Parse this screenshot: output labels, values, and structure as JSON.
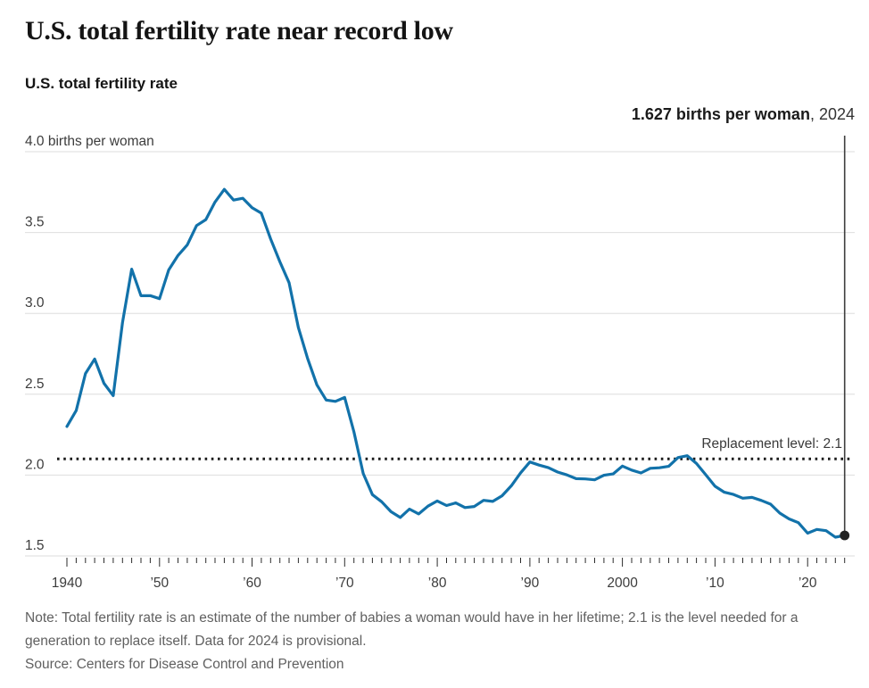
{
  "header": {
    "title": "U.S. total fertility rate near record low"
  },
  "chart": {
    "subtitle": "U.S. total fertility rate",
    "annotation": {
      "value_bold": "1.627 births per woman",
      "year_suffix": ", 2024"
    },
    "replacement_label": "Replacement level: 2.1"
  },
  "chart_data": {
    "type": "line",
    "title": "U.S. total fertility rate",
    "ylabel": "births per woman",
    "ylim": [
      1.5,
      4.0
    ],
    "xlim": [
      1940,
      2024
    ],
    "grid": "horizontal",
    "x_start_year": 1940,
    "x_end_year": 2024,
    "yticks": [
      {
        "value": 4.0,
        "label": "4.0 births per woman"
      },
      {
        "value": 3.5,
        "label": "3.5"
      },
      {
        "value": 3.0,
        "label": "3.0"
      },
      {
        "value": 2.5,
        "label": "2.5"
      },
      {
        "value": 2.0,
        "label": "2.0"
      },
      {
        "value": 1.5,
        "label": "1.5"
      }
    ],
    "xticks": [
      {
        "year": 1940,
        "label": "1940"
      },
      {
        "year": 1950,
        "label": "’50"
      },
      {
        "year": 1960,
        "label": "’60"
      },
      {
        "year": 1970,
        "label": "’70"
      },
      {
        "year": 1980,
        "label": "’80"
      },
      {
        "year": 1990,
        "label": "’90"
      },
      {
        "year": 2000,
        "label": "2000"
      },
      {
        "year": 2010,
        "label": "’10"
      },
      {
        "year": 2020,
        "label": "’20"
      }
    ],
    "replacement_level": 2.1,
    "series": [
      {
        "name": "U.S. total fertility rate",
        "values": [
          2.301,
          2.399,
          2.628,
          2.718,
          2.568,
          2.491,
          2.943,
          3.274,
          3.109,
          3.11,
          3.091,
          3.269,
          3.358,
          3.424,
          3.543,
          3.58,
          3.689,
          3.767,
          3.701,
          3.712,
          3.654,
          3.62,
          3.461,
          3.319,
          3.19,
          2.913,
          2.721,
          2.558,
          2.464,
          2.456,
          2.48,
          2.267,
          2.01,
          1.879,
          1.835,
          1.774,
          1.738,
          1.79,
          1.76,
          1.808,
          1.84,
          1.812,
          1.828,
          1.799,
          1.806,
          1.844,
          1.837,
          1.872,
          1.934,
          2.014,
          2.081,
          2.062,
          2.046,
          2.019,
          2.001,
          1.978,
          1.976,
          1.971,
          1.999,
          2.007,
          2.056,
          2.031,
          2.013,
          2.042,
          2.045,
          2.054,
          2.108,
          2.12,
          2.072,
          2.002,
          1.931,
          1.894,
          1.88,
          1.857,
          1.862,
          1.843,
          1.82,
          1.765,
          1.729,
          1.706,
          1.641,
          1.664,
          1.656,
          1.616,
          1.627
        ]
      }
    ],
    "end_point": {
      "year": 2024,
      "value": 1.627,
      "label": "1.627 births per woman, 2024"
    }
  },
  "footer": {
    "note": "Note: Total fertility rate is an estimate of the number of babies a woman would have in her lifetime; 2.1 is the level needed for a generation to replace itself. Data for 2024 is provisional.",
    "source": "Source: Centers for Disease Control and Prevention"
  },
  "colors": {
    "line": "#1272aa",
    "grid": "#dedede",
    "axis_text": "#3c3c3c",
    "tick": "#2b2b2b",
    "dotted": "#1a1a1a",
    "marker": "#222222",
    "callout": "#3f3f3f",
    "note_text": "#606060"
  }
}
